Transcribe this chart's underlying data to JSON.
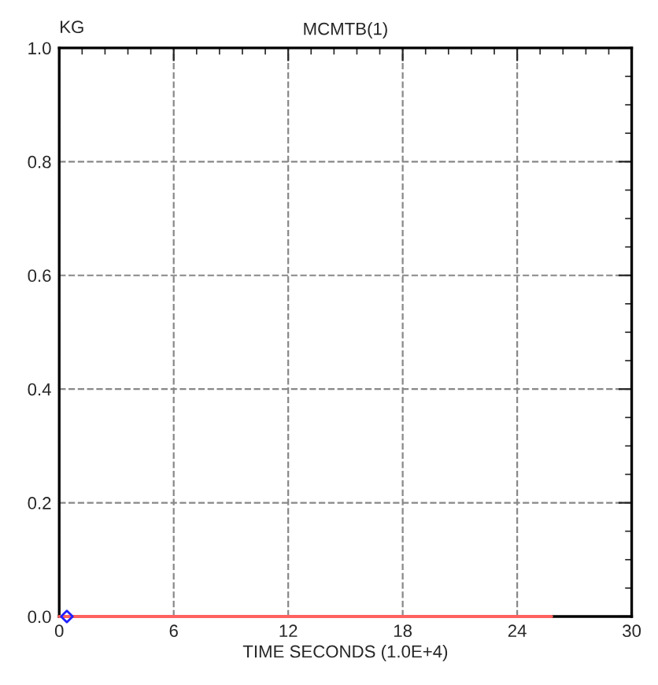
{
  "chart_data": {
    "type": "line",
    "title": "MCMTB(1)",
    "ylabel": "KG",
    "xlabel": "TIME SECONDS (1.0E+4)",
    "series": [
      {
        "color": "#ff6060",
        "x": [
          0,
          25.8
        ],
        "values": [
          0,
          0
        ]
      },
      {
        "type": "scatter",
        "color": "#2020ff",
        "marker": "diamond",
        "x": [
          0.4
        ],
        "values": [
          0
        ]
      }
    ],
    "xlim": [
      0,
      30
    ],
    "xticks": [
      0,
      6,
      12,
      18,
      24,
      30
    ],
    "ylim": [
      0,
      1
    ],
    "yticks": [
      {
        "value": 0,
        "label": "0.0"
      },
      {
        "value": 0.2,
        "label": "0.2"
      },
      {
        "value": 0.4,
        "label": "0.4"
      },
      {
        "value": 0.6,
        "label": "0.6"
      },
      {
        "value": 0.8,
        "label": "0.8"
      },
      {
        "value": 1,
        "label": "1.0"
      }
    ],
    "grid": true
  }
}
